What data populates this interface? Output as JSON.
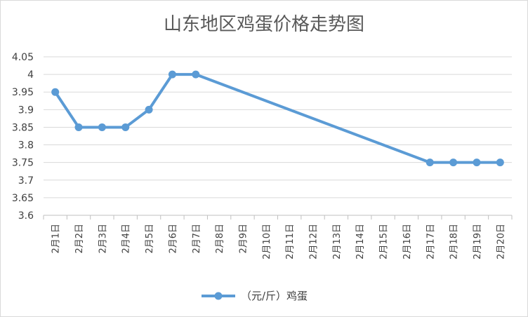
{
  "chart_data": {
    "type": "line",
    "title": "山东地区鸡蛋价格走势图",
    "categories": [
      "2月1日",
      "2月2日",
      "2月3日",
      "2月4日",
      "2月5日",
      "2月6日",
      "2月7日",
      "2月8日",
      "2月9日",
      "2月10日",
      "2月11日",
      "2月12日",
      "2月13日",
      "2月14日",
      "2月15日",
      "2月16日",
      "2月17日",
      "2月18日",
      "2月19日",
      "2月20日"
    ],
    "series": [
      {
        "name": "（元/斤）鸡蛋",
        "color": "#5b9bd5",
        "values": [
          3.95,
          3.85,
          3.85,
          3.85,
          3.9,
          4.0,
          4.0,
          null,
          null,
          null,
          null,
          null,
          null,
          null,
          null,
          null,
          3.75,
          3.75,
          3.75,
          3.75
        ]
      }
    ],
    "yticks": [
      "3.6",
      "3.65",
      "3.7",
      "3.75",
      "3.8",
      "3.85",
      "3.9",
      "3.95",
      "4",
      "4.05"
    ],
    "ylim": [
      3.6,
      4.05
    ],
    "grid": true,
    "legend_position": "bottom",
    "gap_handling": "connect"
  }
}
